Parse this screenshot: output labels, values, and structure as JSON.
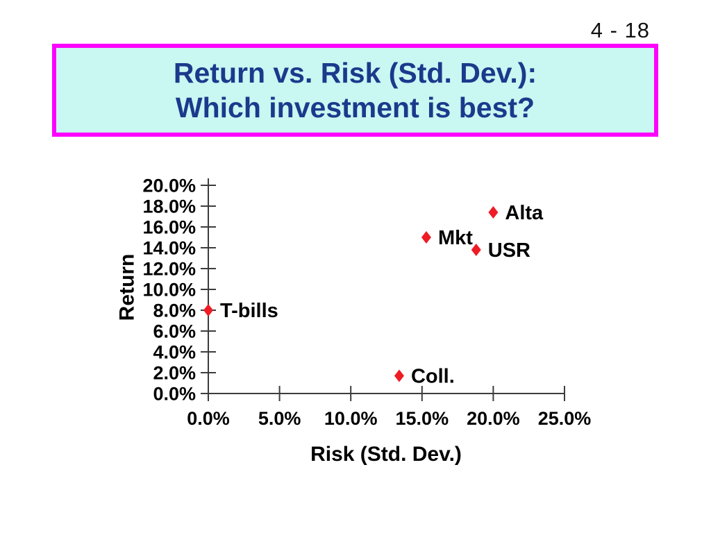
{
  "page_number": "4 - 18",
  "title": {
    "line1": "Return vs. Risk (Std. Dev.):",
    "line2": "Which investment is best?"
  },
  "colors": {
    "title_text": "#1a3a8c",
    "title_box_bg": "#c9f7f1",
    "title_box_border": "#ff00ff",
    "marker": "#ee1c25",
    "axis": "#3c3c3c",
    "label_text": "#000000",
    "page_number_text": "#111111"
  },
  "chart_data": {
    "type": "scatter",
    "title": "",
    "xlabel": "Risk (Std. Dev.)",
    "ylabel": "Return",
    "xlim": [
      0,
      25
    ],
    "ylim": [
      0,
      20
    ],
    "grid": false,
    "legend": false,
    "marker": "diamond",
    "marker_color": "#ee1c25",
    "x_ticks": {
      "values": [
        0,
        5,
        10,
        15,
        20,
        25
      ],
      "labels": [
        "0.0%",
        "5.0%",
        "10.0%",
        "15.0%",
        "20.0%",
        "25.0%"
      ]
    },
    "y_ticks": {
      "values": [
        0,
        2,
        4,
        6,
        8,
        10,
        12,
        14,
        16,
        18,
        20
      ],
      "labels": [
        "0.0%",
        "2.0%",
        "4.0%",
        "6.0%",
        "8.0%",
        "10.0%",
        "12.0%",
        "14.0%",
        "16.0%",
        "18.0%",
        "20.0%"
      ]
    },
    "points": [
      {
        "name": "T-bills",
        "x": 0.0,
        "y": 8.0
      },
      {
        "name": "Alta",
        "x": 20.0,
        "y": 17.4
      },
      {
        "name": "Mkt",
        "x": 15.3,
        "y": 15.0
      },
      {
        "name": "USR",
        "x": 18.8,
        "y": 13.8
      },
      {
        "name": "Coll.",
        "x": 13.4,
        "y": 1.7
      }
    ]
  }
}
